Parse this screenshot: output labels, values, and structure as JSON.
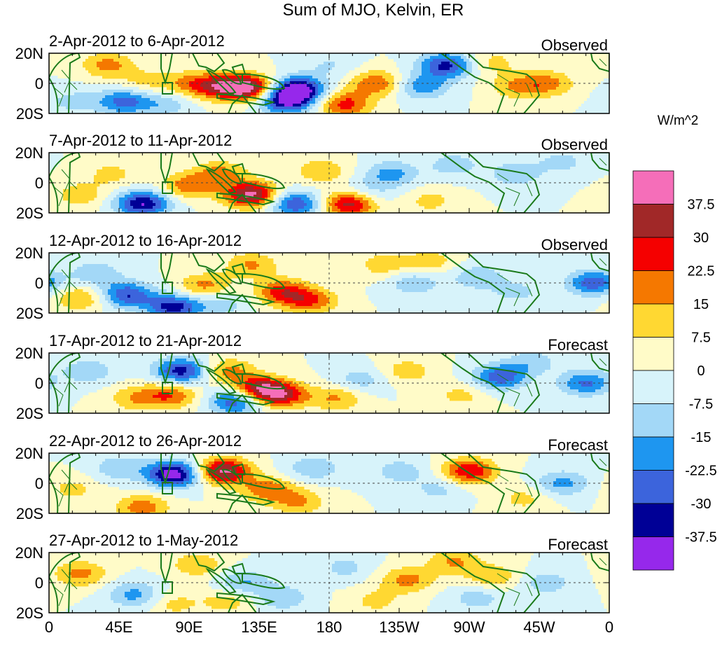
{
  "chart_data": {
    "type": "heatmap",
    "title": "Sum of MJO, Kelvin, ER",
    "units": "W/m^2",
    "colorbar": {
      "levels": [
        -37.5,
        -30,
        -22.5,
        -15,
        -7.5,
        0,
        7.5,
        15,
        22.5,
        30,
        37.5
      ],
      "tick_labels": [
        "37.5",
        "30",
        "22.5",
        "15",
        "7.5",
        "0",
        "-7.5",
        "-15",
        "-22.5",
        "-30",
        "-37.5"
      ],
      "colors": [
        "#f56eb9",
        "#a12828",
        "#f50000",
        "#f57800",
        "#ffd832",
        "#fffbc8",
        "#d7f3fa",
        "#a3d8f7",
        "#1e96f0",
        "#3c64dc",
        "#000096",
        "#9628eb"
      ]
    },
    "y_ticks": [
      "20N",
      "0",
      "20S"
    ],
    "x_ticks": [
      "0",
      "45E",
      "90E",
      "135E",
      "180",
      "135W",
      "90W",
      "45W",
      "0"
    ],
    "x_range_deg": [
      0,
      360
    ],
    "y_range_deg": [
      -20,
      20
    ],
    "panels": [
      {
        "dates": "2-Apr-2012 to 6-Apr-2012",
        "kind": "Observed",
        "anomalies": [
          {
            "lon": 128,
            "lat": -3,
            "value": 42
          },
          {
            "lon": 108,
            "lat": -2,
            "value": 26
          },
          {
            "lon": 90,
            "lat": 0,
            "value": 14
          },
          {
            "lon": 62,
            "lat": 1,
            "value": 10
          },
          {
            "lon": 38,
            "lat": 12,
            "value": 18
          },
          {
            "lon": 160,
            "lat": -4,
            "value": -42
          },
          {
            "lon": 152,
            "lat": -12,
            "value": -34
          },
          {
            "lon": 48,
            "lat": -12,
            "value": -26
          },
          {
            "lon": 255,
            "lat": 12,
            "value": -32
          },
          {
            "lon": 240,
            "lat": -2,
            "value": -20
          },
          {
            "lon": 210,
            "lat": 0,
            "value": 22
          },
          {
            "lon": 190,
            "lat": -14,
            "value": 26
          },
          {
            "lon": 300,
            "lat": -2,
            "value": 14
          },
          {
            "lon": 320,
            "lat": 0,
            "value": 18
          },
          {
            "lon": 75,
            "lat": -14,
            "value": -12
          },
          {
            "lon": 180,
            "lat": 12,
            "value": -8
          },
          {
            "lon": 285,
            "lat": 14,
            "value": 10
          },
          {
            "lon": 15,
            "lat": -12,
            "value": -10
          }
        ]
      },
      {
        "dates": "7-Apr-2012 to 11-Apr-2012",
        "kind": "Observed",
        "anomalies": [
          {
            "lon": 130,
            "lat": -8,
            "value": 40
          },
          {
            "lon": 110,
            "lat": 6,
            "value": 18
          },
          {
            "lon": 90,
            "lat": -2,
            "value": 20
          },
          {
            "lon": 60,
            "lat": -14,
            "value": -38
          },
          {
            "lon": 158,
            "lat": -14,
            "value": -30
          },
          {
            "lon": 175,
            "lat": 8,
            "value": 14
          },
          {
            "lon": 193,
            "lat": -14,
            "value": 34
          },
          {
            "lon": 220,
            "lat": 6,
            "value": -18
          },
          {
            "lon": 260,
            "lat": 12,
            "value": -12
          },
          {
            "lon": 300,
            "lat": 6,
            "value": -14
          },
          {
            "lon": 205,
            "lat": -6,
            "value": -10
          },
          {
            "lon": 40,
            "lat": 6,
            "value": 10
          },
          {
            "lon": 20,
            "lat": -8,
            "value": 12
          },
          {
            "lon": 330,
            "lat": 14,
            "value": -10
          },
          {
            "lon": 245,
            "lat": -12,
            "value": 10
          }
        ]
      },
      {
        "dates": "12-Apr-2012 to 16-Apr-2012",
        "kind": "Observed",
        "anomalies": [
          {
            "lon": 150,
            "lat": -6,
            "value": 26
          },
          {
            "lon": 168,
            "lat": -12,
            "value": 22
          },
          {
            "lon": 130,
            "lat": 12,
            "value": 16
          },
          {
            "lon": 100,
            "lat": -2,
            "value": 18
          },
          {
            "lon": 50,
            "lat": -8,
            "value": -30
          },
          {
            "lon": 80,
            "lat": -16,
            "value": -34
          },
          {
            "lon": 30,
            "lat": 6,
            "value": -14
          },
          {
            "lon": 110,
            "lat": -14,
            "value": -12
          },
          {
            "lon": 235,
            "lat": 0,
            "value": -14
          },
          {
            "lon": 275,
            "lat": 4,
            "value": -14
          },
          {
            "lon": 350,
            "lat": 0,
            "value": -28
          },
          {
            "lon": 215,
            "lat": 12,
            "value": 12
          },
          {
            "lon": 245,
            "lat": 14,
            "value": 12
          },
          {
            "lon": 20,
            "lat": -10,
            "value": 16
          },
          {
            "lon": 300,
            "lat": -6,
            "value": -10
          }
        ]
      },
      {
        "dates": "17-Apr-2012 to 21-Apr-2012",
        "kind": "Forecast",
        "anomalies": [
          {
            "lon": 135,
            "lat": -4,
            "value": 34
          },
          {
            "lon": 150,
            "lat": -8,
            "value": 28
          },
          {
            "lon": 115,
            "lat": 8,
            "value": 18
          },
          {
            "lon": 85,
            "lat": 8,
            "value": -34
          },
          {
            "lon": 120,
            "lat": -12,
            "value": -30
          },
          {
            "lon": 78,
            "lat": -8,
            "value": 22
          },
          {
            "lon": 55,
            "lat": -10,
            "value": 14
          },
          {
            "lon": 25,
            "lat": 8,
            "value": -14
          },
          {
            "lon": 200,
            "lat": 2,
            "value": -12
          },
          {
            "lon": 185,
            "lat": -10,
            "value": 16
          },
          {
            "lon": 230,
            "lat": 8,
            "value": 12
          },
          {
            "lon": 290,
            "lat": 4,
            "value": -28
          },
          {
            "lon": 345,
            "lat": 0,
            "value": -24
          },
          {
            "lon": 310,
            "lat": 14,
            "value": -12
          },
          {
            "lon": 265,
            "lat": -8,
            "value": 10
          }
        ]
      },
      {
        "dates": "22-Apr-2012 to 26-Apr-2012",
        "kind": "Forecast",
        "anomalies": [
          {
            "lon": 80,
            "lat": 6,
            "value": -44
          },
          {
            "lon": 112,
            "lat": 8,
            "value": 40
          },
          {
            "lon": 140,
            "lat": -4,
            "value": 20
          },
          {
            "lon": 160,
            "lat": -12,
            "value": 16
          },
          {
            "lon": 60,
            "lat": -16,
            "value": 20
          },
          {
            "lon": 45,
            "lat": 10,
            "value": -14
          },
          {
            "lon": 170,
            "lat": 10,
            "value": -14
          },
          {
            "lon": 270,
            "lat": 8,
            "value": 30
          },
          {
            "lon": 225,
            "lat": 8,
            "value": -12
          },
          {
            "lon": 250,
            "lat": -4,
            "value": -10
          },
          {
            "lon": 330,
            "lat": 0,
            "value": -18
          },
          {
            "lon": 15,
            "lat": -4,
            "value": 10
          },
          {
            "lon": 305,
            "lat": -10,
            "value": 10
          }
        ]
      },
      {
        "dates": "27-Apr-2012 to 1-May-2012",
        "kind": "Forecast",
        "anomalies": [
          {
            "lon": 20,
            "lat": 6,
            "value": 18
          },
          {
            "lon": 55,
            "lat": -8,
            "value": -18
          },
          {
            "lon": 95,
            "lat": 12,
            "value": 14
          },
          {
            "lon": 125,
            "lat": 0,
            "value": -16
          },
          {
            "lon": 150,
            "lat": -10,
            "value": -14
          },
          {
            "lon": 115,
            "lat": -12,
            "value": 12
          },
          {
            "lon": 190,
            "lat": 10,
            "value": -10
          },
          {
            "lon": 230,
            "lat": 2,
            "value": 18
          },
          {
            "lon": 260,
            "lat": 14,
            "value": 16
          },
          {
            "lon": 285,
            "lat": 4,
            "value": 14
          },
          {
            "lon": 275,
            "lat": -10,
            "value": -12
          },
          {
            "lon": 320,
            "lat": 0,
            "value": -12
          },
          {
            "lon": 210,
            "lat": -12,
            "value": 10
          },
          {
            "lon": 80,
            "lat": -14,
            "value": 10
          }
        ]
      }
    ]
  }
}
